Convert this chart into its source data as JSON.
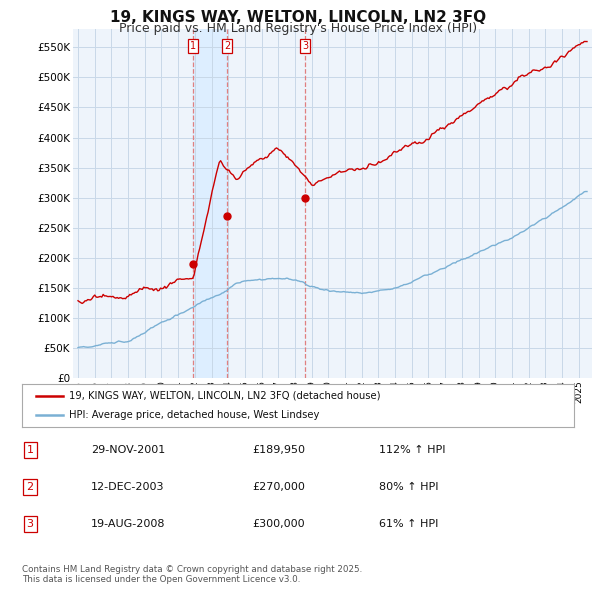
{
  "title": "19, KINGS WAY, WELTON, LINCOLN, LN2 3FQ",
  "subtitle": "Price paid vs. HM Land Registry's House Price Index (HPI)",
  "ylabel_ticks": [
    "£0",
    "£50K",
    "£100K",
    "£150K",
    "£200K",
    "£250K",
    "£300K",
    "£350K",
    "£400K",
    "£450K",
    "£500K",
    "£550K"
  ],
  "ytick_vals": [
    0,
    50000,
    100000,
    150000,
    200000,
    250000,
    300000,
    350000,
    400000,
    450000,
    500000,
    550000
  ],
  "ylim": [
    0,
    580000
  ],
  "sale_dates_num": [
    2001.91,
    2003.95,
    2008.63
  ],
  "sale_prices": [
    189950,
    270000,
    300000
  ],
  "sale_labels": [
    "1",
    "2",
    "3"
  ],
  "vline_color": "#e08080",
  "sale_color": "#cc0000",
  "hpi_color": "#7ab0d4",
  "shade_color": "#ddeeff",
  "legend_entries": [
    "19, KINGS WAY, WELTON, LINCOLN, LN2 3FQ (detached house)",
    "HPI: Average price, detached house, West Lindsey"
  ],
  "table_rows": [
    [
      "1",
      "29-NOV-2001",
      "£189,950",
      "112% ↑ HPI"
    ],
    [
      "2",
      "12-DEC-2003",
      "£270,000",
      "80% ↑ HPI"
    ],
    [
      "3",
      "19-AUG-2008",
      "£300,000",
      "61% ↑ HPI"
    ]
  ],
  "footnote": "Contains HM Land Registry data © Crown copyright and database right 2025.\nThis data is licensed under the Open Government Licence v3.0.",
  "bg_color": "#ffffff",
  "plot_bg_color": "#eef4fb",
  "grid_color": "#c8d8e8",
  "title_fontsize": 11,
  "subtitle_fontsize": 9
}
